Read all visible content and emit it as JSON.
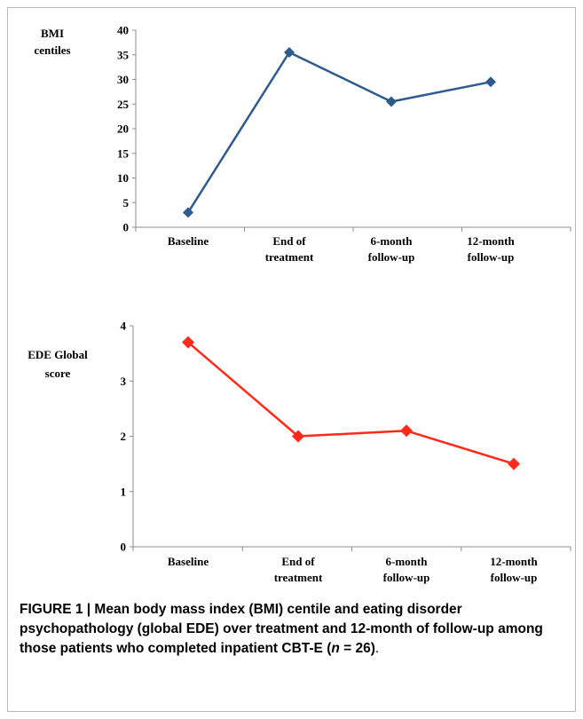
{
  "chart_data": [
    {
      "type": "line",
      "ylabel_lines": [
        "BMI",
        "centiles"
      ],
      "categories": [
        [
          "Baseline"
        ],
        [
          "End of",
          "treatment"
        ],
        [
          "6-month",
          "follow-up"
        ],
        [
          "12-month",
          "follow-up"
        ]
      ],
      "yticks": [
        "0",
        "5",
        "10",
        "15",
        "20",
        "25",
        "30",
        "35",
        "40"
      ],
      "ylim": [
        0,
        40
      ],
      "values": [
        3,
        35.5,
        25.5,
        29.5
      ],
      "color": "#2e5a8c",
      "marker": "diamond",
      "grid": false
    },
    {
      "type": "line",
      "ylabel_lines": [
        "EDE Global",
        "score"
      ],
      "categories": [
        [
          "Baseline"
        ],
        [
          "End of",
          "treatment"
        ],
        [
          "6-month",
          "follow-up"
        ],
        [
          "12-month",
          "follow-up"
        ]
      ],
      "yticks": [
        "0",
        "1",
        "2",
        "3",
        "4"
      ],
      "ylim": [
        0,
        4
      ],
      "values": [
        3.7,
        2.0,
        2.1,
        1.5
      ],
      "color": "#ff2a1a",
      "marker": "diamond",
      "grid": false
    }
  ],
  "caption": {
    "prefix": "FIGURE 1 | Mean body mass index (BMI) centile and eating disorder psychopathology (global EDE) over treatment and 12-month of follow-up among those patients who completed inpatient CBT-E (",
    "n_symbol": "n",
    "n_value": " = 26)",
    "suffix": "."
  }
}
